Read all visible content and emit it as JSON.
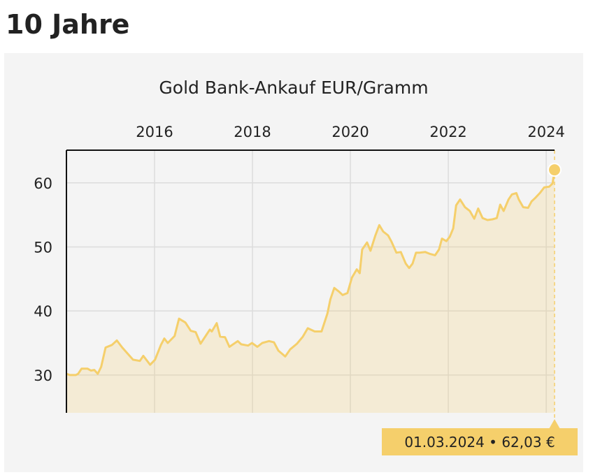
{
  "heading": "10 Jahre",
  "chart_data": {
    "type": "line",
    "title": "Gold Bank-Ankauf EUR/Gramm",
    "x": [
      2014.2,
      2014.27,
      2014.39,
      2014.44,
      2014.51,
      2014.63,
      2014.7,
      2014.77,
      2014.84,
      2014.91,
      2015.0,
      2015.13,
      2015.23,
      2015.34,
      2015.56,
      2015.7,
      2015.77,
      2015.91,
      2016.01,
      2016.13,
      2016.2,
      2016.27,
      2016.41,
      2016.5,
      2016.63,
      2016.74,
      2016.84,
      2016.94,
      2017.13,
      2017.17,
      2017.27,
      2017.34,
      2017.44,
      2017.53,
      2017.7,
      2017.77,
      2017.91,
      2017.99,
      2018.1,
      2018.2,
      2018.34,
      2018.44,
      2018.53,
      2018.67,
      2018.77,
      2018.91,
      2019.03,
      2019.13,
      2019.27,
      2019.41,
      2019.53,
      2019.59,
      2019.67,
      2019.77,
      2019.84,
      2019.94,
      2020.03,
      2020.13,
      2020.19,
      2020.24,
      2020.34,
      2020.41,
      2020.51,
      2020.59,
      2020.67,
      2020.77,
      2020.84,
      2020.94,
      2021.03,
      2021.13,
      2021.2,
      2021.27,
      2021.34,
      2021.41,
      2021.53,
      2021.63,
      2021.73,
      2021.81,
      2021.87,
      2021.96,
      2022.03,
      2022.1,
      2022.16,
      2022.24,
      2022.34,
      2022.44,
      2022.53,
      2022.61,
      2022.7,
      2022.8,
      2022.9,
      2022.99,
      2023.06,
      2023.13,
      2023.23,
      2023.3,
      2023.39,
      2023.44,
      2023.53,
      2023.63,
      2023.7,
      2023.77,
      2023.87,
      2023.96,
      2024.06,
      2024.13,
      2024.17
    ],
    "series": [
      {
        "color": "#f5cf6b",
        "values": [
          30.2,
          30.0,
          30.0,
          30.2,
          31.0,
          31.0,
          30.7,
          30.8,
          30.2,
          31.3,
          34.3,
          34.7,
          35.4,
          34.3,
          32.4,
          32.2,
          33.0,
          31.6,
          32.4,
          34.7,
          35.7,
          35.0,
          36.1,
          38.8,
          38.2,
          36.9,
          36.7,
          34.9,
          37.1,
          36.8,
          38.1,
          36.0,
          35.9,
          34.4,
          35.3,
          34.8,
          34.6,
          35.0,
          34.4,
          35.0,
          35.3,
          35.1,
          33.8,
          32.9,
          34.0,
          34.9,
          36.0,
          37.3,
          36.8,
          36.8,
          39.6,
          41.8,
          43.6,
          43.0,
          42.5,
          42.8,
          45.2,
          46.5,
          45.9,
          49.6,
          50.7,
          49.4,
          51.8,
          53.4,
          52.4,
          51.8,
          50.8,
          49.1,
          49.2,
          47.4,
          46.7,
          47.4,
          49.1,
          49.1,
          49.2,
          48.9,
          48.7,
          49.6,
          51.3,
          50.9,
          51.6,
          52.9,
          56.5,
          57.4,
          56.2,
          55.6,
          54.4,
          56.0,
          54.5,
          54.2,
          54.3,
          54.5,
          56.6,
          55.6,
          57.4,
          58.2,
          58.4,
          57.4,
          56.2,
          56.1,
          57.1,
          57.6,
          58.4,
          59.3,
          59.4,
          59.9,
          62.03
        ]
      }
    ],
    "xlim": [
      2014.2,
      2024.17
    ],
    "xticks": [
      2016,
      2018,
      2020,
      2022,
      2024
    ],
    "ylim": [
      24.1,
      65.1
    ],
    "yticks": [
      30,
      40,
      50,
      60
    ],
    "grid": true,
    "annotation": "01.03.2024 • 62,03 €"
  }
}
